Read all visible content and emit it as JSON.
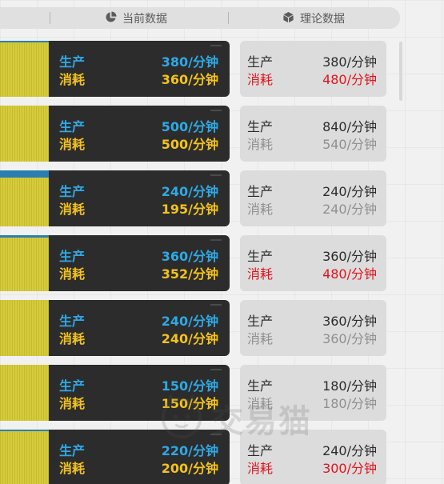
{
  "header": {
    "current_label": "当前数据",
    "current_icon": "pie-chart-icon",
    "theory_label": "理论数据",
    "theory_icon": "cube-icon"
  },
  "rows": [
    {
      "cur_prod_label": "生产",
      "cur_prod": "380/分钟",
      "cur_cons_label": "消耗",
      "cur_cons": "360/分钟",
      "th_prod_label": "生产",
      "th_prod": "380/分钟",
      "th_cons_label": "消耗",
      "th_cons": "480/分钟",
      "th_cons_alert": true
    },
    {
      "cur_prod_label": "生产",
      "cur_prod": "500/分钟",
      "cur_cons_label": "消耗",
      "cur_cons": "500/分钟",
      "th_prod_label": "生产",
      "th_prod": "840/分钟",
      "th_cons_label": "消耗",
      "th_cons": "540/分钟",
      "th_cons_alert": false
    },
    {
      "cur_prod_label": "生产",
      "cur_prod": "240/分钟",
      "cur_cons_label": "消耗",
      "cur_cons": "195/分钟",
      "th_prod_label": "生产",
      "th_prod": "240/分钟",
      "th_cons_label": "消耗",
      "th_cons": "240/分钟",
      "th_cons_alert": false
    },
    {
      "cur_prod_label": "生产",
      "cur_prod": "360/分钟",
      "cur_cons_label": "消耗",
      "cur_cons": "352/分钟",
      "th_prod_label": "生产",
      "th_prod": "360/分钟",
      "th_cons_label": "消耗",
      "th_cons": "480/分钟",
      "th_cons_alert": true
    },
    {
      "cur_prod_label": "生产",
      "cur_prod": "240/分钟",
      "cur_cons_label": "消耗",
      "cur_cons": "240/分钟",
      "th_prod_label": "生产",
      "th_prod": "360/分钟",
      "th_cons_label": "消耗",
      "th_cons": "360/分钟",
      "th_cons_alert": false
    },
    {
      "cur_prod_label": "生产",
      "cur_prod": "150/分钟",
      "cur_cons_label": "消耗",
      "cur_cons": "150/分钟",
      "th_prod_label": "生产",
      "th_prod": "180/分钟",
      "th_cons_label": "消耗",
      "th_cons": "180/分钟",
      "th_cons_alert": false
    },
    {
      "cur_prod_label": "生产",
      "cur_prod": "220/分钟",
      "cur_cons_label": "消耗",
      "cur_cons": "200/分钟",
      "th_prod_label": "生产",
      "th_prod": "240/分钟",
      "th_cons_label": "消耗",
      "th_cons": "300/分钟",
      "th_cons_alert": true
    }
  ],
  "watermark": {
    "text": "交易猫"
  },
  "colors": {
    "production": "#2fa9e6",
    "consumption": "#f3c31a",
    "alert": "#e3141e",
    "muted": "#909090"
  }
}
